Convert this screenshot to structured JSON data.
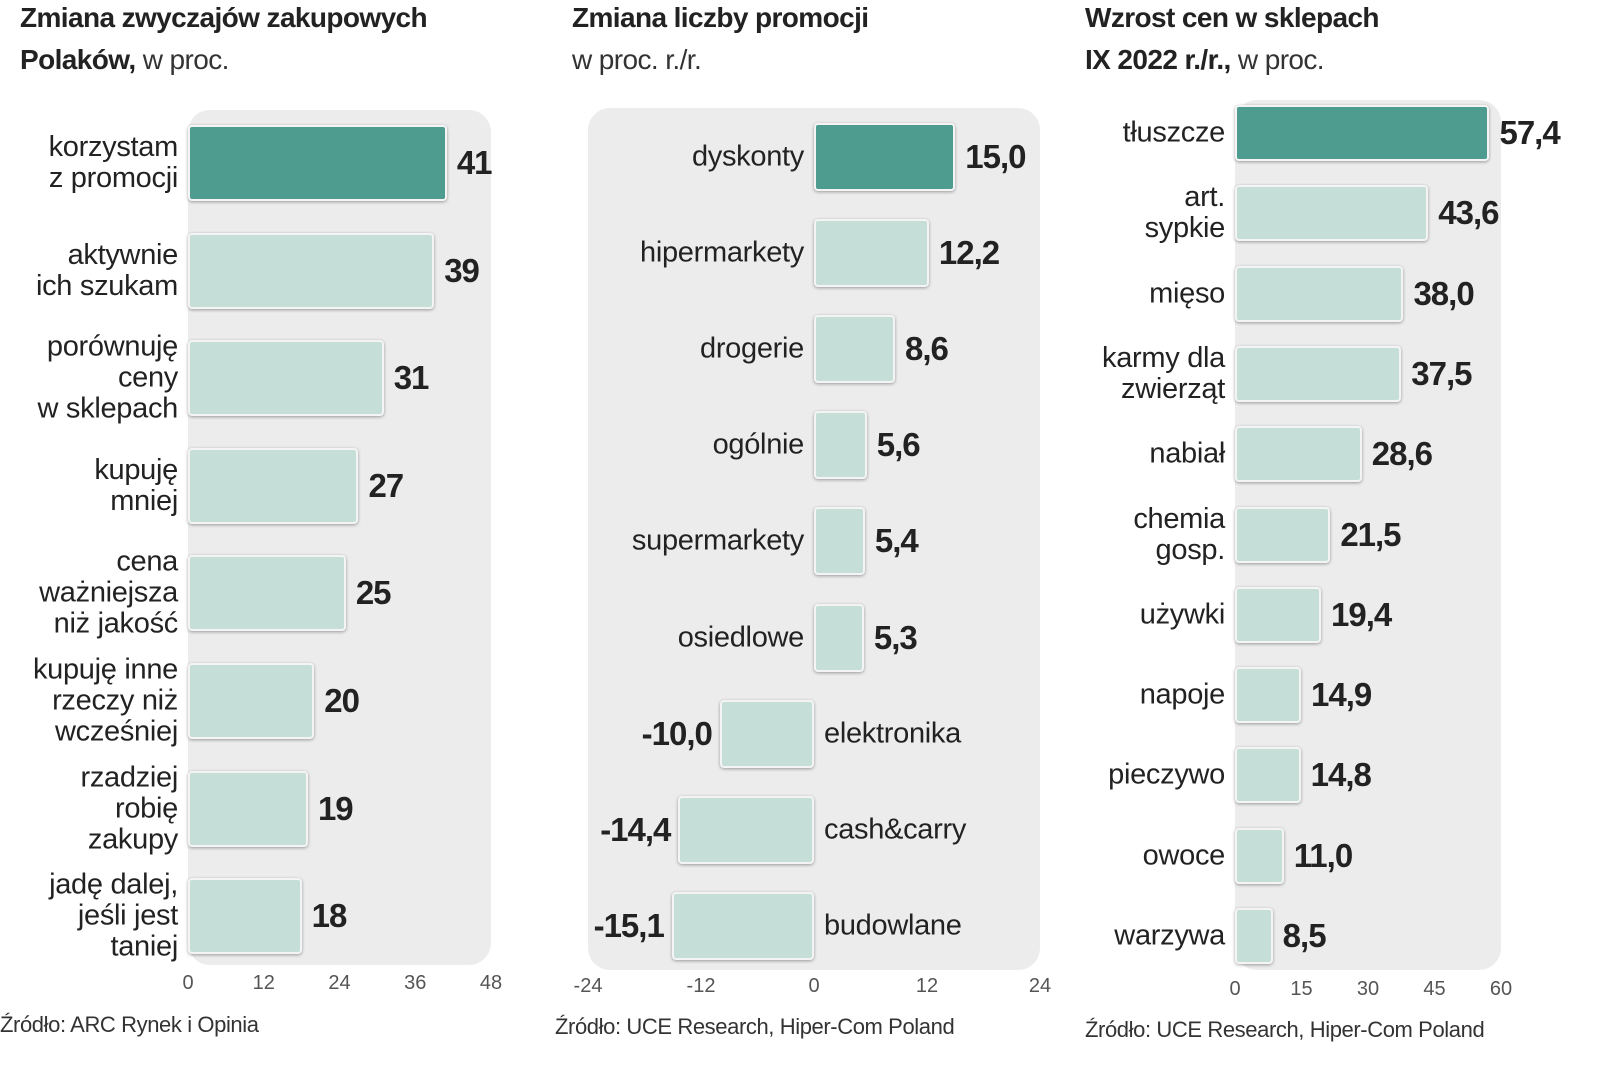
{
  "chart_data": [
    {
      "type": "bar",
      "orientation": "horizontal",
      "title": "Zmiana zwyczajów zakupowych\nPolaków,",
      "subtitle": "w proc.",
      "categories": [
        "korzystam\nz promocji",
        "aktywnie\nich szukam",
        "porównuję\nceny\nw sklepach",
        "kupuję\nmniej",
        "cena\nważniejsza\nniż jakość",
        "kupuję inne\nrzeczy niż\nwcześniej",
        "rzadziej\nrobię\nzakupy",
        "jadę dalej,\njeśli jest\ntaniej"
      ],
      "values": [
        41,
        39,
        31,
        27,
        25,
        20,
        19,
        18
      ],
      "colors": [
        "#4e9b8f",
        "#c6ded8",
        "#c6ded8",
        "#c6ded8",
        "#c6ded8",
        "#c6ded8",
        "#c6ded8",
        "#c6ded8"
      ],
      "xlim": [
        0,
        48
      ],
      "xticks": [
        0,
        12,
        24,
        36,
        48
      ],
      "source": "Źródło: ARC Rynek i Opinia"
    },
    {
      "type": "bar",
      "orientation": "horizontal",
      "title": "Zmiana liczby promocji",
      "subtitle": "\nw proc. r./r.",
      "categories": [
        "dyskonty",
        "hipermarkety",
        "drogerie",
        "ogólnie",
        "supermarkety",
        "osiedlowe",
        "elektronika",
        "cash&carry",
        "budowlane"
      ],
      "values": [
        15.0,
        12.2,
        8.6,
        5.6,
        5.4,
        5.3,
        -10.0,
        -14.4,
        -15.1
      ],
      "value_labels": [
        "15,0",
        "12,2",
        "8,6",
        "5,6",
        "5,4",
        "5,3",
        "-10,0",
        "-14,4",
        "-15,1"
      ],
      "colors": [
        "#4e9b8f",
        "#c6ded8",
        "#c6ded8",
        "#c6ded8",
        "#c6ded8",
        "#c6ded8",
        "#c6ded8",
        "#c6ded8",
        "#c6ded8"
      ],
      "xlim": [
        -24,
        24
      ],
      "xticks": [
        -24,
        -12,
        0,
        12,
        24
      ],
      "source": "Źródło: UCE Research, Hiper-Com Poland"
    },
    {
      "type": "bar",
      "orientation": "horizontal",
      "title": "Wzrost cen w sklepach\nIX 2022 r./r.,",
      "subtitle": "w proc.",
      "categories": [
        "tłuszcze",
        "art.\nsypkie",
        "mięso",
        "karmy dla\nzwierząt",
        "nabiał",
        "chemia\ngosp.",
        "używki",
        "napoje",
        "pieczywo",
        "owoce",
        "warzywa"
      ],
      "values": [
        57.4,
        43.6,
        38.0,
        37.5,
        28.6,
        21.5,
        19.4,
        14.9,
        14.8,
        11.0,
        8.5
      ],
      "value_labels": [
        "57,4",
        "43,6",
        "38,0",
        "37,5",
        "28,6",
        "21,5",
        "19,4",
        "14,9",
        "14,8",
        "11,0",
        "8,5"
      ],
      "colors": [
        "#4e9b8f",
        "#c6ded8",
        "#c6ded8",
        "#c6ded8",
        "#c6ded8",
        "#c6ded8",
        "#c6ded8",
        "#c6ded8",
        "#c6ded8",
        "#c6ded8",
        "#c6ded8"
      ],
      "xlim": [
        0,
        60
      ],
      "xticks": [
        0,
        15,
        30,
        45,
        60
      ],
      "source": "Źródło: UCE Research, Hiper-Com Poland"
    }
  ]
}
